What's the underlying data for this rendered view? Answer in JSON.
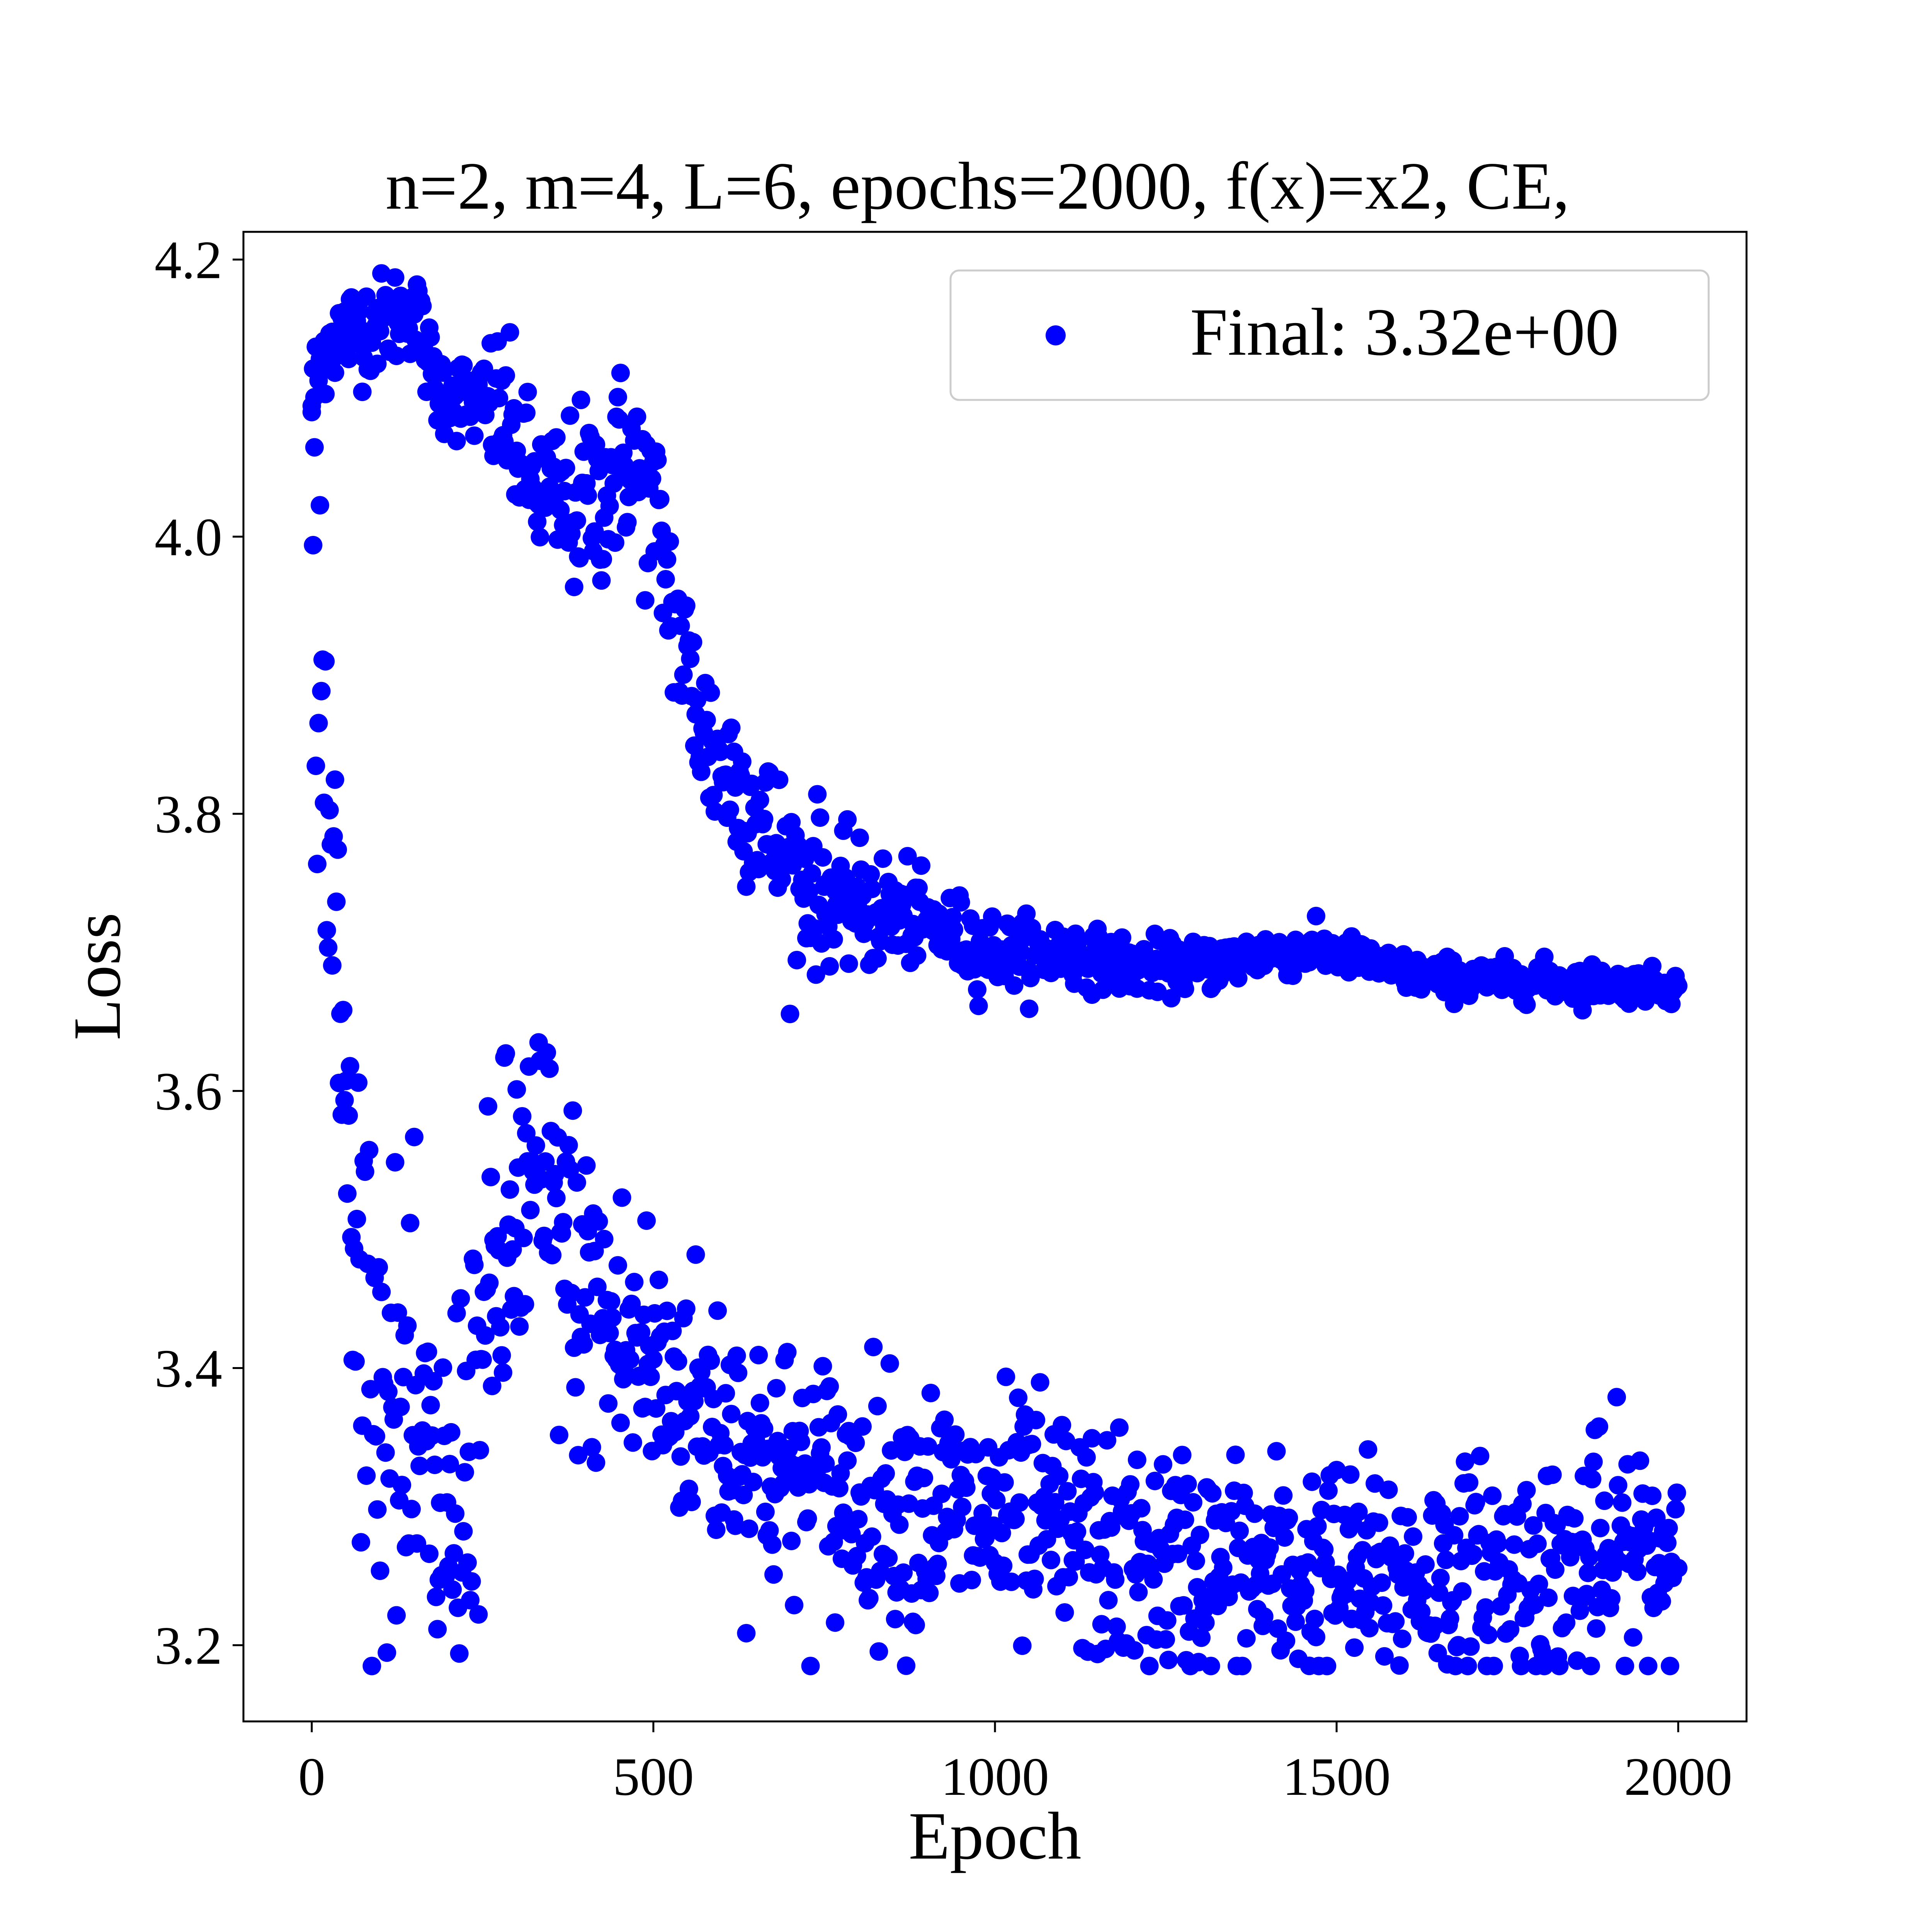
{
  "chart_data": {
    "type": "scatter",
    "title": "n=2, m=4, L=6, epochs=2000, f(x)=x2, CE,",
    "xlabel": "Epoch",
    "ylabel": "Loss",
    "xlim": [
      -100,
      2100
    ],
    "ylim": [
      3.145,
      4.22
    ],
    "xticks": [
      0,
      500,
      1000,
      1500,
      2000
    ],
    "yticks": [
      3.2,
      3.4,
      3.6,
      3.8,
      4.0,
      4.2
    ],
    "xtick_labels": [
      "0",
      "500",
      "1000",
      "1500",
      "2000"
    ],
    "ytick_labels": [
      "3.2",
      "3.4",
      "3.6",
      "3.8",
      "4.0",
      "4.2"
    ],
    "grid": false,
    "legend_position": "top-right",
    "series": [
      {
        "name": "Final: 3.32e+00",
        "color": "#0000ff",
        "marker": "circle",
        "branches": [
          {
            "label": "upper",
            "anchors": [
              [
                0,
                4.1
              ],
              [
                20,
                4.14
              ],
              [
                60,
                4.15
              ],
              [
                100,
                4.155
              ],
              [
                150,
                4.165
              ],
              [
                180,
                4.11
              ],
              [
                220,
                4.1
              ],
              [
                280,
                4.09
              ],
              [
                320,
                4.04
              ],
              [
                370,
                4.02
              ],
              [
                420,
                4.03
              ],
              [
                460,
                4.06
              ],
              [
                500,
                4.02
              ],
              [
                540,
                3.92
              ],
              [
                580,
                3.85
              ],
              [
                640,
                3.81
              ],
              [
                700,
                3.76
              ],
              [
                760,
                3.74
              ],
              [
                820,
                3.73
              ],
              [
                900,
                3.72
              ],
              [
                1000,
                3.7
              ],
              [
                1100,
                3.7
              ],
              [
                1200,
                3.69
              ],
              [
                1300,
                3.69
              ],
              [
                1400,
                3.7
              ],
              [
                1500,
                3.7
              ],
              [
                1600,
                3.685
              ],
              [
                1700,
                3.68
              ],
              [
                1800,
                3.68
              ],
              [
                1900,
                3.677
              ],
              [
                2000,
                3.675
              ]
            ],
            "noise": [
              0.018,
              0.016,
              0.028,
              0.034,
              0.034,
              0.03,
              0.022,
              0.015,
              0.012,
              0.01,
              0.009,
              0.008,
              0.007,
              0.007,
              0.007,
              0.006,
              0.005
            ]
          },
          {
            "label": "lower",
            "anchors": [
              [
                0,
                3.98
              ],
              [
                20,
                3.85
              ],
              [
                40,
                3.65
              ],
              [
                60,
                3.5
              ],
              [
                90,
                3.42
              ],
              [
                120,
                3.36
              ],
              [
                160,
                3.32
              ],
              [
                200,
                3.28
              ],
              [
                240,
                3.38
              ],
              [
                280,
                3.48
              ],
              [
                320,
                3.53
              ],
              [
                360,
                3.5
              ],
              [
                400,
                3.45
              ],
              [
                450,
                3.42
              ],
              [
                500,
                3.4
              ],
              [
                550,
                3.38
              ],
              [
                600,
                3.36
              ],
              [
                650,
                3.34
              ],
              [
                700,
                3.32
              ],
              [
                800,
                3.31
              ],
              [
                900,
                3.3
              ],
              [
                1000,
                3.29
              ],
              [
                1100,
                3.28
              ],
              [
                1200,
                3.26
              ],
              [
                1300,
                3.255
              ],
              [
                1400,
                3.25
              ],
              [
                1500,
                3.25
              ],
              [
                1600,
                3.25
              ],
              [
                1700,
                3.25
              ],
              [
                1800,
                3.255
              ],
              [
                1900,
                3.26
              ],
              [
                2000,
                3.27
              ]
            ],
            "noise": [
              0.08,
              0.075,
              0.07,
              0.06,
              0.05,
              0.048,
              0.045,
              0.045,
              0.045,
              0.042,
              0.042,
              0.042,
              0.04,
              0.04,
              0.04,
              0.045,
              0.048
            ]
          }
        ],
        "final_value": 3.32
      }
    ]
  }
}
